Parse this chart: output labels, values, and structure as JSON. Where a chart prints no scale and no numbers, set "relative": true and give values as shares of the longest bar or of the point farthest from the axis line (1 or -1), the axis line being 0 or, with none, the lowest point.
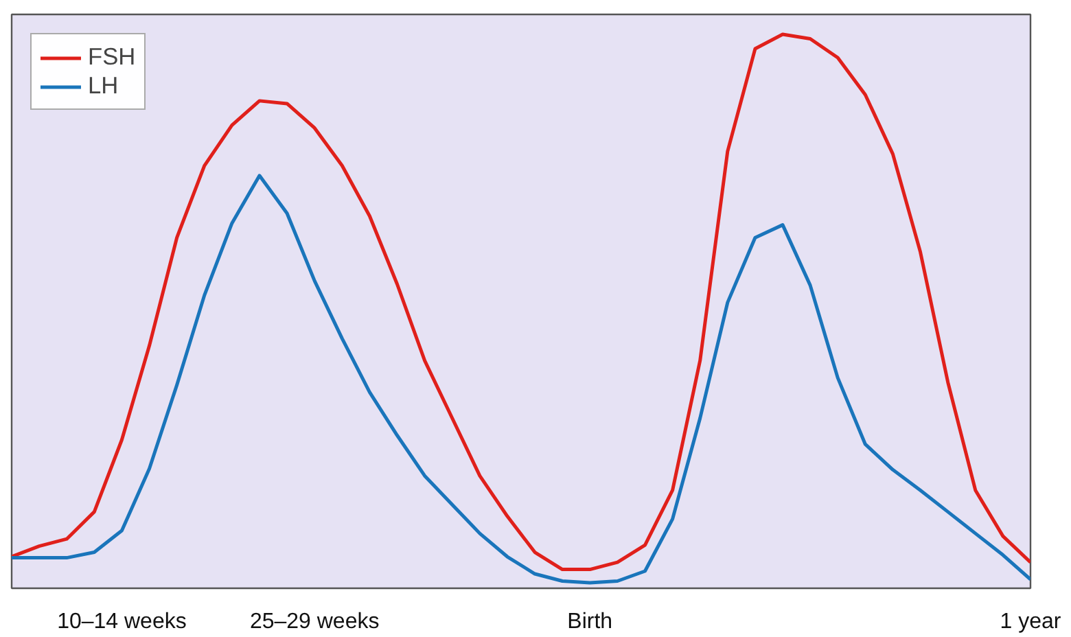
{
  "chart_data": {
    "type": "line",
    "relative": true,
    "categories": [
      null,
      null,
      null,
      null,
      "10–14 weeks",
      null,
      null,
      null,
      null,
      null,
      null,
      "25–29 weeks",
      null,
      null,
      null,
      null,
      null,
      null,
      null,
      null,
      null,
      "Birth",
      null,
      null,
      null,
      null,
      null,
      null,
      null,
      null,
      null,
      null,
      null,
      null,
      null,
      null,
      null,
      "1 year"
    ],
    "grid": false,
    "legend": "top left",
    "line_style": "solid",
    "series": [
      {
        "name": "FSH",
        "color": "#e0201b",
        "values": [
          0.057,
          0.076,
          0.089,
          0.138,
          0.268,
          0.438,
          0.633,
          0.763,
          0.836,
          0.88,
          0.875,
          0.831,
          0.763,
          0.672,
          0.549,
          0.411,
          0.307,
          0.203,
          0.13,
          0.065,
          0.034,
          0.034,
          0.047,
          0.078,
          0.177,
          0.411,
          0.789,
          0.974,
          1.0,
          0.992,
          0.958,
          0.891,
          0.784,
          0.607,
          0.372,
          0.177,
          0.094,
          0.047
        ]
      },
      {
        "name": "LH",
        "color": "#1a75bb",
        "values": [
          0.055,
          0.055,
          0.055,
          0.065,
          0.104,
          0.216,
          0.367,
          0.529,
          0.659,
          0.745,
          0.677,
          0.555,
          0.451,
          0.354,
          0.276,
          0.203,
          0.151,
          0.099,
          0.057,
          0.026,
          0.013,
          0.01,
          0.013,
          0.031,
          0.125,
          0.307,
          0.516,
          0.633,
          0.656,
          0.547,
          0.38,
          0.26,
          0.214,
          0.177,
          0.138,
          0.099,
          0.06,
          0.016
        ]
      }
    ]
  }
}
